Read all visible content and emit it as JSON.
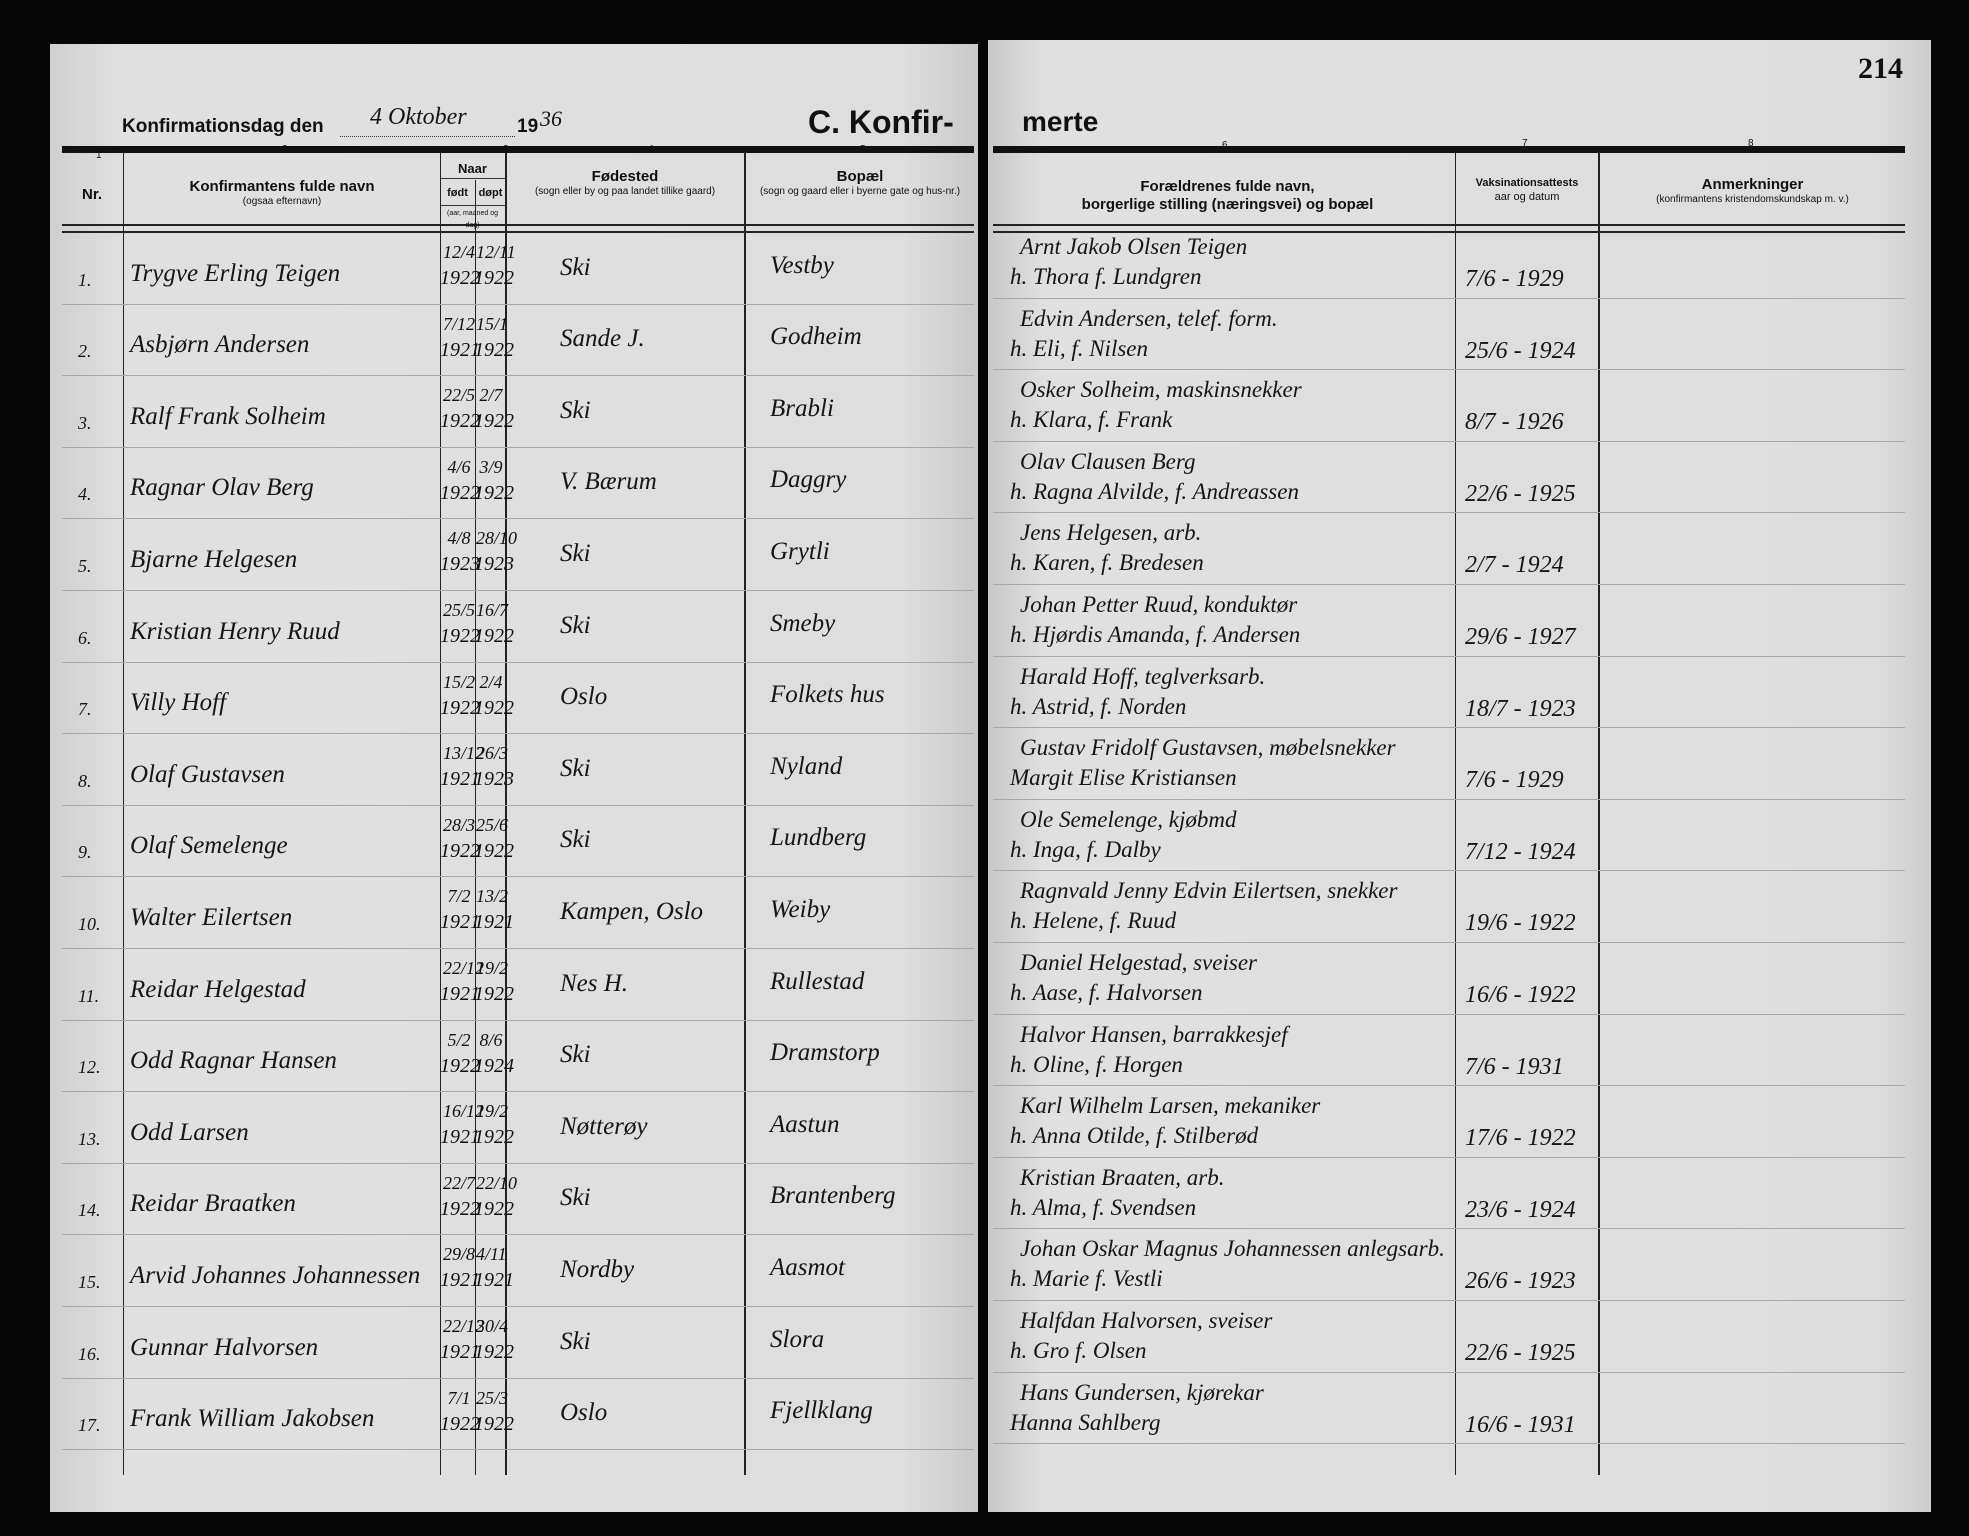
{
  "header": {
    "date_label": "Konfirmationsdag den",
    "date_value": "4 Oktober",
    "year_prefix": "19",
    "year_suffix": "36",
    "section_title_left": "C. Konfir-",
    "section_title_right": "merte",
    "page_number": "214",
    "column_numbers": [
      "1",
      "2",
      "3",
      "4",
      "5",
      "6",
      "7",
      "8"
    ]
  },
  "columns": {
    "nr": "Nr.",
    "name": "Konfirmantens fulde navn",
    "name_sub": "(ogsaa efternavn)",
    "naar": "Naar",
    "fodt": "født",
    "dopt": "døpt",
    "naar_sub": "(aar, maaned og dag)",
    "fodested": "Fødested",
    "fodested_sub": "(sogn eller by og paa landet tillike gaard)",
    "bopael": "Bopæl",
    "bopael_sub": "(sogn og gaard eller i byerne gate og hus-nr.)",
    "parents": "Forældrenes fulde navn,",
    "parents2": "borgerlige stilling (næringsvei) og bopæl",
    "vaccination": "Vaksinationsattests",
    "vaccination_sub": "aar og datum",
    "remarks": "Anmerkninger",
    "remarks_sub": "(konfirmantens kristendomskundskap m. v.)"
  },
  "rows": [
    {
      "nr": "1.",
      "name": "Trygve Erling Teigen",
      "born_d": "12/4",
      "born_y": "1922",
      "bapt_d": "12/11",
      "bapt_y": "1922",
      "birthplace": "Ski",
      "residence": "Vestby",
      "parents1": "Arnt Jakob Olsen Teigen",
      "parents2": "h. Thora f. Lundgren",
      "vaccination": "7/6 - 1929"
    },
    {
      "nr": "2.",
      "name": "Asbjørn Andersen",
      "born_d": "7/12",
      "born_y": "1921",
      "bapt_d": "15/1",
      "bapt_y": "1922",
      "birthplace": "Sande J.",
      "residence": "Godheim",
      "parents1": "Edvin Andersen, telef. form.",
      "parents2": "h. Eli, f. Nilsen",
      "vaccination": "25/6 - 1924"
    },
    {
      "nr": "3.",
      "name": "Ralf Frank Solheim",
      "born_d": "22/5",
      "born_y": "1922",
      "bapt_d": "2/7",
      "bapt_y": "1922",
      "birthplace": "Ski",
      "residence": "Brabli",
      "parents1": "Osker Solheim, maskinsnekker",
      "parents2": "h. Klara, f. Frank",
      "vaccination": "8/7 - 1926"
    },
    {
      "nr": "4.",
      "name": "Ragnar Olav Berg",
      "born_d": "4/6",
      "born_y": "1922",
      "bapt_d": "3/9",
      "bapt_y": "1922",
      "birthplace": "V. Bærum",
      "residence": "Daggry",
      "parents1": "Olav Clausen Berg",
      "parents2": "h. Ragna Alvilde, f. Andreassen",
      "vaccination": "22/6 - 1925"
    },
    {
      "nr": "5.",
      "name": "Bjarne Helgesen",
      "born_d": "4/8",
      "born_y": "1923",
      "bapt_d": "28/10",
      "bapt_y": "1923",
      "birthplace": "Ski",
      "residence": "Grytli",
      "parents1": "Jens Helgesen, arb.",
      "parents2": "h. Karen, f. Bredesen",
      "vaccination": "2/7 - 1924"
    },
    {
      "nr": "6.",
      "name": "Kristian Henry Ruud",
      "born_d": "25/5",
      "born_y": "1922",
      "bapt_d": "16/7",
      "bapt_y": "1922",
      "birthplace": "Ski",
      "residence": "Smeby",
      "parents1": "Johan Petter Ruud, konduktør",
      "parents2": "h. Hjørdis Amanda, f. Andersen",
      "vaccination": "29/6 - 1927"
    },
    {
      "nr": "7.",
      "name": "Villy Hoff",
      "born_d": "15/2",
      "born_y": "1922",
      "bapt_d": "2/4",
      "bapt_y": "1922",
      "birthplace": "Oslo",
      "residence": "Folkets hus",
      "parents1": "Harald Hoff, teglverksarb.",
      "parents2": "h. Astrid, f. Norden",
      "vaccination": "18/7 - 1923"
    },
    {
      "nr": "8.",
      "name": "Olaf Gustavsen",
      "born_d": "13/12",
      "born_y": "1921",
      "bapt_d": "26/3",
      "bapt_y": "1923",
      "birthplace": "Ski",
      "residence": "Nyland",
      "parents1": "Gustav Fridolf Gustavsen, møbelsnekker",
      "parents2": "Margit Elise Kristiansen",
      "vaccination": "7/6 - 1929"
    },
    {
      "nr": "9.",
      "name": "Olaf Semelenge",
      "born_d": "28/3",
      "born_y": "1922",
      "bapt_d": "25/6",
      "bapt_y": "1922",
      "birthplace": "Ski",
      "residence": "Lundberg",
      "parents1": "Ole Semelenge, kjøbmd",
      "parents2": "h. Inga, f. Dalby",
      "vaccination": "7/12 - 1924"
    },
    {
      "nr": "10.",
      "name": "Walter Eilertsen",
      "born_d": "7/2",
      "born_y": "1921",
      "bapt_d": "13/2",
      "bapt_y": "1921",
      "birthplace": "Kampen, Oslo",
      "residence": "Weiby",
      "parents1": "Ragnvald Jenny Edvin Eilertsen, snekker",
      "parents2": "h. Helene, f. Ruud",
      "vaccination": "19/6 - 1922"
    },
    {
      "nr": "11.",
      "name": "Reidar Helgestad",
      "born_d": "22/12",
      "born_y": "1921",
      "bapt_d": "19/2",
      "bapt_y": "1922",
      "birthplace": "Nes H.",
      "residence": "Rullestad",
      "parents1": "Daniel Helgestad, sveiser",
      "parents2": "h. Aase, f. Halvorsen",
      "vaccination": "16/6 - 1922"
    },
    {
      "nr": "12.",
      "name": "Odd Ragnar Hansen",
      "born_d": "5/2",
      "born_y": "1922",
      "bapt_d": "8/6",
      "bapt_y": "1924",
      "birthplace": "Ski",
      "residence": "Dramstorp",
      "parents1": "Halvor Hansen, barrakkesjef",
      "parents2": "h. Oline, f. Horgen",
      "vaccination": "7/6 - 1931"
    },
    {
      "nr": "13.",
      "name": "Odd Larsen",
      "born_d": "16/12",
      "born_y": "1921",
      "bapt_d": "19/2",
      "bapt_y": "1922",
      "birthplace": "Nøtterøy",
      "residence": "Aastun",
      "parents1": "Karl Wilhelm Larsen, mekaniker",
      "parents2": "h. Anna Otilde, f. Stilberød",
      "vaccination": "17/6 - 1922"
    },
    {
      "nr": "14.",
      "name": "Reidar Braatken",
      "born_d": "22/7",
      "born_y": "1922",
      "bapt_d": "22/10",
      "bapt_y": "1922",
      "birthplace": "Ski",
      "residence": "Brantenberg",
      "parents1": "Kristian Braaten, arb.",
      "parents2": "h. Alma, f. Svendsen",
      "vaccination": "23/6 - 1924"
    },
    {
      "nr": "15.",
      "name": "Arvid Johannes Johannessen",
      "born_d": "29/8",
      "born_y": "1921",
      "bapt_d": "4/11",
      "bapt_y": "1921",
      "birthplace": "Nordby",
      "residence": "Aasmot",
      "parents1": "Johan Oskar Magnus Johannessen anlegsarb.",
      "parents2": "h. Marie f. Vestli",
      "vaccination": "26/6 - 1923"
    },
    {
      "nr": "16.",
      "name": "Gunnar Halvorsen",
      "born_d": "22/12",
      "born_y": "1921",
      "bapt_d": "30/4",
      "bapt_y": "1922",
      "birthplace": "Ski",
      "residence": "Slora",
      "parents1": "Halfdan Halvorsen, sveiser",
      "parents2": "h. Gro f. Olsen",
      "vaccination": "22/6 - 1925"
    },
    {
      "nr": "17.",
      "name": "Frank William Jakobsen",
      "born_d": "7/1",
      "born_y": "1922",
      "bapt_d": "25/3",
      "bapt_y": "1922",
      "birthplace": "Oslo",
      "residence": "Fjellklang",
      "parents1": "Hans Gundersen, kjørekar",
      "parents2": "Hanna Sahlberg",
      "vaccination": "16/6 - 1931"
    }
  ]
}
